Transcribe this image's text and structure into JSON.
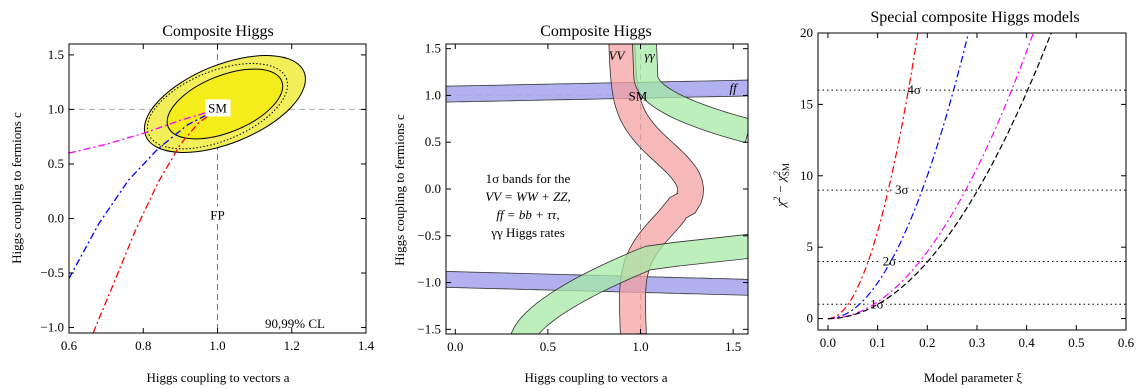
{
  "chart_data": [
    {
      "type": "contour",
      "title": "Composite Higgs",
      "xlabel": "Higgs coupling to vectors a",
      "ylabel": "Higgs coupling to fermions c",
      "xlim": [
        0.6,
        1.4
      ],
      "ylim": [
        -1.05,
        1.6
      ],
      "xticks": [
        0.6,
        0.8,
        1.0,
        1.2,
        1.4
      ],
      "yticks": [
        -1.0,
        -0.5,
        0.0,
        0.5,
        1.0,
        1.5
      ],
      "tick_labels_x": [
        "0.6",
        "0.8",
        "1.0",
        "1.2",
        "1.4"
      ],
      "tick_labels_y": [
        "−1.0",
        "−0.5",
        "0.0",
        "0.5",
        "1.0",
        "1.5"
      ],
      "ellipse_99": {
        "center": [
          1.02,
          1.05
        ],
        "rx": 0.23,
        "ry": 0.36,
        "angle_deg": 22
      },
      "ellipse_90": {
        "center": [
          1.02,
          1.05
        ],
        "rx": 0.165,
        "ry": 0.26,
        "angle_deg": 22
      },
      "ellipse_dotted": {
        "center": [
          1.0,
          1.03
        ],
        "rx": 0.2,
        "ry": 0.32,
        "angle_deg": 22
      },
      "sm_point": {
        "label": "SM",
        "x": 1.0,
        "y": 1.0
      },
      "fp_point": {
        "label": "FP",
        "x": 1.0,
        "y": 0.0
      },
      "annotation": "90,99% CL",
      "curves": [
        {
          "color": "#ff00ff",
          "style": "dashdot",
          "points": [
            [
              0.6,
              0.6
            ],
            [
              0.7,
              0.68
            ],
            [
              0.8,
              0.78
            ],
            [
              0.9,
              0.9
            ],
            [
              1.0,
              1.0
            ]
          ]
        },
        {
          "color": "#0000ff",
          "style": "dashdot",
          "points": [
            [
              0.6,
              -0.55
            ],
            [
              0.68,
              -0.05
            ],
            [
              0.76,
              0.35
            ],
            [
              0.84,
              0.64
            ],
            [
              0.92,
              0.86
            ],
            [
              1.0,
              1.0
            ]
          ]
        },
        {
          "color": "#ff0000",
          "style": "dashdot",
          "points": [
            [
              0.665,
              -1.05
            ],
            [
              0.72,
              -0.6
            ],
            [
              0.78,
              -0.1
            ],
            [
              0.84,
              0.33
            ],
            [
              0.9,
              0.68
            ],
            [
              0.95,
              0.88
            ],
            [
              1.0,
              1.0
            ]
          ]
        }
      ],
      "colors": {
        "fill_outer": "#f2ef5a",
        "fill_inner": "#f5ec1c",
        "sm_box": "#ffffff"
      }
    },
    {
      "type": "bands",
      "title": "Composite Higgs",
      "xlabel": "Higgs coupling to vectors a",
      "ylabel": "Higgs coupling to fermions c",
      "xlim": [
        -0.05,
        1.58
      ],
      "ylim": [
        -1.55,
        1.55
      ],
      "xticks": [
        0.0,
        0.5,
        1.0,
        1.5
      ],
      "yticks": [
        -1.5,
        -1.0,
        -0.5,
        0.0,
        0.5,
        1.0,
        1.5
      ],
      "tick_labels_x": [
        "0.0",
        "0.5",
        "1.0",
        "1.5"
      ],
      "tick_labels_y": [
        "−1.5",
        "−1.0",
        "−0.5",
        "0.0",
        "0.5",
        "1.0",
        "1.5"
      ],
      "band_labels": [
        "VV",
        "γγ",
        "ff"
      ],
      "sm_label": "SM",
      "legend_lines": [
        "1σ bands for the",
        "VV = WW + ZZ,",
        "ff = bb + ττ,",
        "γγ Higgs rates"
      ],
      "colors": {
        "vv": "#f4a2a2",
        "gg": "#a6e9a6",
        "ff": "#a9a8ee",
        "edge": "#333333"
      }
    },
    {
      "type": "line",
      "title": "Special composite Higgs models",
      "xlabel": "Model parameter ξ",
      "ylabel": "χ² − χ²SM",
      "ylabel_main": "χ",
      "ylabel_sup1": "2",
      "ylabel_mid": " − χ",
      "ylabel_sup2": "2",
      "ylabel_sub2": "SM",
      "xlim": [
        -0.02,
        0.6
      ],
      "ylim": [
        -0.8,
        20
      ],
      "xticks": [
        0.0,
        0.1,
        0.2,
        0.3,
        0.4,
        0.5,
        0.6
      ],
      "yticks": [
        0,
        5,
        10,
        15,
        20
      ],
      "tick_labels_x": [
        "0.0",
        "0.1",
        "0.2",
        "0.3",
        "0.4",
        "0.5",
        "0.6"
      ],
      "tick_labels_y": [
        "0",
        "5",
        "10",
        "15",
        "20"
      ],
      "sigma_lines": [
        {
          "label": "1σ",
          "y": 1
        },
        {
          "label": "2σ",
          "y": 4
        },
        {
          "label": "3σ",
          "y": 9
        },
        {
          "label": "4σ",
          "y": 16
        }
      ],
      "series": [
        {
          "color": "#ff0000",
          "style": "dashdot",
          "k": 610,
          "p": 2
        },
        {
          "color": "#0000ff",
          "style": "dashdot",
          "k": 250,
          "p": 2
        },
        {
          "color": "#ff00ff",
          "style": "dashdot",
          "k": 117,
          "p": 2
        },
        {
          "color": "#000000",
          "style": "dashed",
          "k": 99,
          "p": 2
        }
      ]
    }
  ]
}
